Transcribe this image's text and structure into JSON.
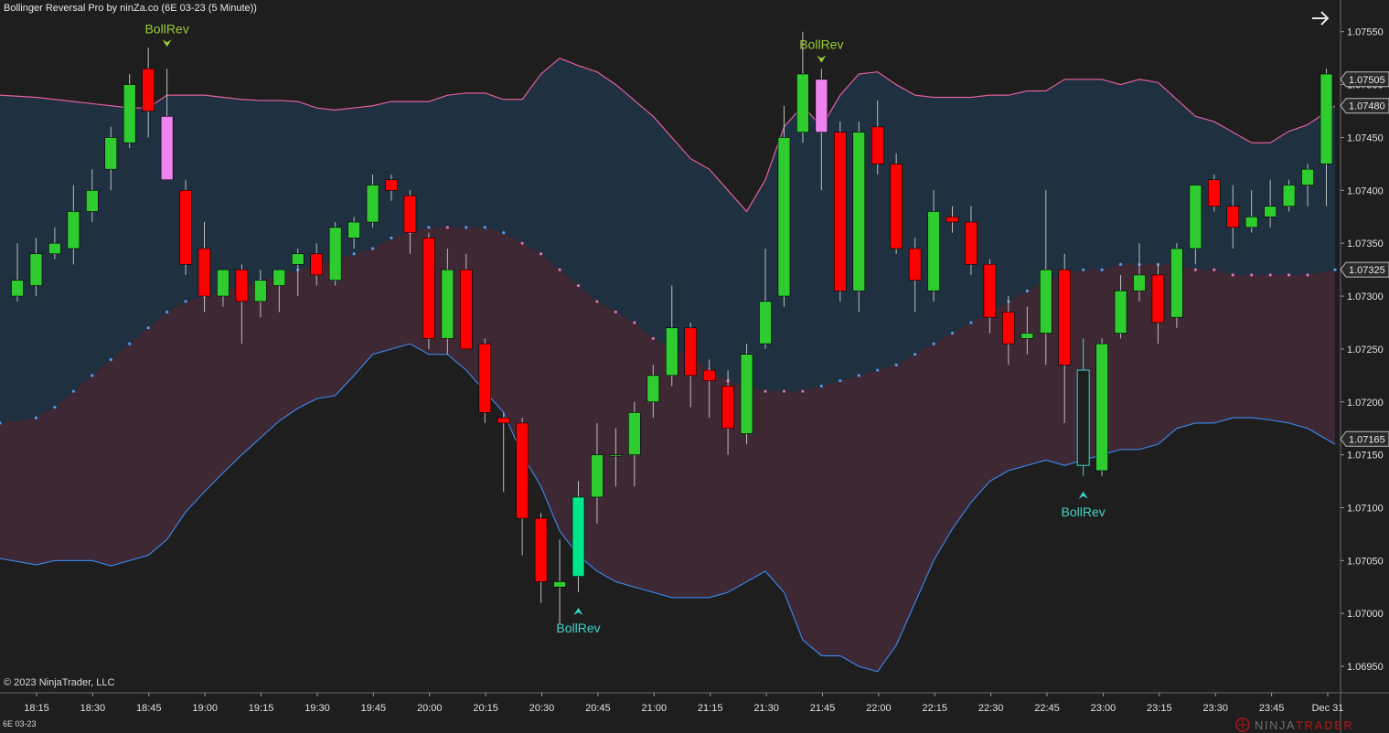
{
  "header": {
    "title": "Bollinger Reversal Pro by ninZa.co (6E 03-23 (5 Minute))"
  },
  "footer": {
    "copyright": "© 2023 NinjaTrader, LLC",
    "instrument": "6E 03-23",
    "brand_prefix": "NINJA",
    "brand_suffix": "TRADER"
  },
  "icons": {
    "expand": "arrow-right-icon",
    "logo": "ninjatrader-logo-icon"
  },
  "colors": {
    "background": "#1e1e1e",
    "up_candle": "#2ecc2e",
    "down_candle": "#ff0000",
    "upper_band": "#e0609a",
    "lower_band": "#3b82e0",
    "bull_fill": "#1f3040",
    "bear_fill": "#3d2834",
    "bull_signal": "#3fd3c8",
    "bear_signal": "#9acd32",
    "signal_bar_up": "#00e68a",
    "signal_bar_down": "#ee82ee"
  },
  "chart_data": {
    "type": "candlestick",
    "instrument": "6E 03-23",
    "timeframe": "5 Minute",
    "ylim": [
      1.06925,
      1.0758
    ],
    "y_ticks": [
      1.0755,
      1.075,
      1.0745,
      1.074,
      1.0735,
      1.073,
      1.0725,
      1.072,
      1.0715,
      1.071,
      1.0705,
      1.07,
      1.0695
    ],
    "x_ticks": [
      "18:15",
      "18:30",
      "18:45",
      "19:00",
      "19:15",
      "19:30",
      "19:45",
      "20:00",
      "20:15",
      "20:30",
      "20:45",
      "21:00",
      "21:15",
      "21:30",
      "21:45",
      "22:00",
      "22:15",
      "22:30",
      "22:45",
      "23:00",
      "23:15",
      "23:30",
      "23:45",
      "Dec 31"
    ],
    "price_markers": [
      {
        "value": "1.07505",
        "color": "#2a2a2a"
      },
      {
        "value": "1.07480",
        "color": "#2a2a2a"
      },
      {
        "value": "1.07325",
        "color": "#2a2a2a"
      },
      {
        "value": "1.07165",
        "color": "#2a2a2a"
      }
    ],
    "candles": [
      {
        "o": 1.073,
        "h": 1.0735,
        "l": 1.07295,
        "c": 1.07315
      },
      {
        "o": 1.0731,
        "h": 1.07355,
        "l": 1.073,
        "c": 1.0734
      },
      {
        "o": 1.0734,
        "h": 1.07365,
        "l": 1.07335,
        "c": 1.0735
      },
      {
        "o": 1.07345,
        "h": 1.07405,
        "l": 1.0733,
        "c": 1.0738
      },
      {
        "o": 1.0738,
        "h": 1.0742,
        "l": 1.0737,
        "c": 1.074
      },
      {
        "o": 1.0742,
        "h": 1.0746,
        "l": 1.074,
        "c": 1.0745
      },
      {
        "o": 1.07445,
        "h": 1.0751,
        "l": 1.0744,
        "c": 1.075
      },
      {
        "o": 1.07515,
        "h": 1.07535,
        "l": 1.0745,
        "c": 1.07475
      },
      {
        "o": 1.0747,
        "h": 1.07515,
        "l": 1.0741,
        "c": 1.0741,
        "signal_bar": "down"
      },
      {
        "o": 1.074,
        "h": 1.0741,
        "l": 1.0732,
        "c": 1.0733
      },
      {
        "o": 1.07345,
        "h": 1.0737,
        "l": 1.07285,
        "c": 1.073
      },
      {
        "o": 1.073,
        "h": 1.07325,
        "l": 1.0729,
        "c": 1.07325
      },
      {
        "o": 1.07325,
        "h": 1.0733,
        "l": 1.07255,
        "c": 1.07295
      },
      {
        "o": 1.07295,
        "h": 1.07325,
        "l": 1.0728,
        "c": 1.07315
      },
      {
        "o": 1.0731,
        "h": 1.07325,
        "l": 1.07285,
        "c": 1.07325
      },
      {
        "o": 1.0733,
        "h": 1.07345,
        "l": 1.073,
        "c": 1.0734
      },
      {
        "o": 1.0734,
        "h": 1.0735,
        "l": 1.0731,
        "c": 1.0732
      },
      {
        "o": 1.07315,
        "h": 1.0737,
        "l": 1.0731,
        "c": 1.07365
      },
      {
        "o": 1.07355,
        "h": 1.07375,
        "l": 1.07345,
        "c": 1.0737
      },
      {
        "o": 1.0737,
        "h": 1.07415,
        "l": 1.07365,
        "c": 1.07405
      },
      {
        "o": 1.0741,
        "h": 1.07415,
        "l": 1.0739,
        "c": 1.074
      },
      {
        "o": 1.07395,
        "h": 1.074,
        "l": 1.0734,
        "c": 1.0736
      },
      {
        "o": 1.07355,
        "h": 1.0736,
        "l": 1.0725,
        "c": 1.0726
      },
      {
        "o": 1.0726,
        "h": 1.07345,
        "l": 1.07245,
        "c": 1.07325
      },
      {
        "o": 1.07325,
        "h": 1.0734,
        "l": 1.0725,
        "c": 1.0725
      },
      {
        "o": 1.07255,
        "h": 1.0726,
        "l": 1.0718,
        "c": 1.0719
      },
      {
        "o": 1.07185,
        "h": 1.0719,
        "l": 1.07115,
        "c": 1.0718
      },
      {
        "o": 1.0718,
        "h": 1.07185,
        "l": 1.07055,
        "c": 1.0709
      },
      {
        "o": 1.0709,
        "h": 1.07095,
        "l": 1.0701,
        "c": 1.0703
      },
      {
        "o": 1.07025,
        "h": 1.0707,
        "l": 1.0699,
        "c": 1.0703
      },
      {
        "o": 1.07035,
        "h": 1.07125,
        "l": 1.0702,
        "c": 1.0711,
        "signal_bar": "up"
      },
      {
        "o": 1.0711,
        "h": 1.0718,
        "l": 1.07085,
        "c": 1.0715
      },
      {
        "o": 1.0715,
        "h": 1.07175,
        "l": 1.0712,
        "c": 1.0715
      },
      {
        "o": 1.0715,
        "h": 1.072,
        "l": 1.0712,
        "c": 1.0719
      },
      {
        "o": 1.072,
        "h": 1.07235,
        "l": 1.07185,
        "c": 1.07225
      },
      {
        "o": 1.07225,
        "h": 1.0731,
        "l": 1.07215,
        "c": 1.0727
      },
      {
        "o": 1.0727,
        "h": 1.07275,
        "l": 1.07195,
        "c": 1.07225
      },
      {
        "o": 1.0723,
        "h": 1.0724,
        "l": 1.07185,
        "c": 1.0722
      },
      {
        "o": 1.07215,
        "h": 1.0723,
        "l": 1.0715,
        "c": 1.07175
      },
      {
        "o": 1.0717,
        "h": 1.07255,
        "l": 1.0716,
        "c": 1.07245
      },
      {
        "o": 1.07255,
        "h": 1.07345,
        "l": 1.0725,
        "c": 1.07295
      },
      {
        "o": 1.073,
        "h": 1.0748,
        "l": 1.0729,
        "c": 1.0745
      },
      {
        "o": 1.07455,
        "h": 1.0755,
        "l": 1.07445,
        "c": 1.0751
      },
      {
        "o": 1.07505,
        "h": 1.07515,
        "l": 1.074,
        "c": 1.07455,
        "signal_bar": "down"
      },
      {
        "o": 1.07455,
        "h": 1.07465,
        "l": 1.07295,
        "c": 1.07305
      },
      {
        "o": 1.07305,
        "h": 1.07465,
        "l": 1.07285,
        "c": 1.07455
      },
      {
        "o": 1.0746,
        "h": 1.07485,
        "l": 1.07415,
        "c": 1.07425
      },
      {
        "o": 1.07425,
        "h": 1.07435,
        "l": 1.0734,
        "c": 1.07345
      },
      {
        "o": 1.07345,
        "h": 1.07355,
        "l": 1.07285,
        "c": 1.07315
      },
      {
        "o": 1.07305,
        "h": 1.074,
        "l": 1.07295,
        "c": 1.0738
      },
      {
        "o": 1.07375,
        "h": 1.07385,
        "l": 1.0736,
        "c": 1.0737
      },
      {
        "o": 1.0737,
        "h": 1.07385,
        "l": 1.0732,
        "c": 1.0733
      },
      {
        "o": 1.0733,
        "h": 1.07335,
        "l": 1.07265,
        "c": 1.0728
      },
      {
        "o": 1.07285,
        "h": 1.073,
        "l": 1.07235,
        "c": 1.07255
      },
      {
        "o": 1.0726,
        "h": 1.0729,
        "l": 1.07245,
        "c": 1.07265
      },
      {
        "o": 1.07265,
        "h": 1.074,
        "l": 1.07235,
        "c": 1.07325
      },
      {
        "o": 1.07325,
        "h": 1.0734,
        "l": 1.0718,
        "c": 1.07235
      },
      {
        "o": 1.0714,
        "h": 1.0726,
        "l": 1.0713,
        "c": 1.0723,
        "hollow": true
      },
      {
        "o": 1.07135,
        "h": 1.0726,
        "l": 1.0713,
        "c": 1.07255
      },
      {
        "o": 1.07265,
        "h": 1.0732,
        "l": 1.0726,
        "c": 1.07305
      },
      {
        "o": 1.07305,
        "h": 1.0735,
        "l": 1.07295,
        "c": 1.0732
      },
      {
        "o": 1.0732,
        "h": 1.0733,
        "l": 1.07255,
        "c": 1.07275
      },
      {
        "o": 1.0728,
        "h": 1.0735,
        "l": 1.0727,
        "c": 1.07345
      },
      {
        "o": 1.07345,
        "h": 1.07405,
        "l": 1.0733,
        "c": 1.07405
      },
      {
        "o": 1.0741,
        "h": 1.07415,
        "l": 1.0738,
        "c": 1.07385
      },
      {
        "o": 1.07385,
        "h": 1.07405,
        "l": 1.07345,
        "c": 1.07365
      },
      {
        "o": 1.07365,
        "h": 1.074,
        "l": 1.0736,
        "c": 1.07375
      },
      {
        "o": 1.07375,
        "h": 1.0741,
        "l": 1.07365,
        "c": 1.07385
      },
      {
        "o": 1.07385,
        "h": 1.0741,
        "l": 1.0738,
        "c": 1.07405
      },
      {
        "o": 1.07405,
        "h": 1.07425,
        "l": 1.07385,
        "c": 1.0742
      },
      {
        "o": 1.07425,
        "h": 1.07515,
        "l": 1.07385,
        "c": 1.0751
      }
    ],
    "upper_band": [
      1.0749,
      1.07488,
      1.07486,
      1.07484,
      1.07482,
      1.0748,
      1.07478,
      1.07478,
      1.0749,
      1.0749,
      1.0749,
      1.07488,
      1.07486,
      1.07485,
      1.07485,
      1.07484,
      1.07478,
      1.07476,
      1.07478,
      1.0748,
      1.07484,
      1.07484,
      1.07484,
      1.0749,
      1.07492,
      1.07492,
      1.07486,
      1.07486,
      1.0751,
      1.07525,
      1.07518,
      1.07512,
      1.075,
      1.07485,
      1.0747,
      1.0745,
      1.0743,
      1.0742,
      1.074,
      1.0738,
      1.0741,
      1.0746,
      1.0748,
      1.0746,
      1.0749,
      1.0751,
      1.07512,
      1.075,
      1.0749,
      1.07488,
      1.07488,
      1.07488,
      1.0749,
      1.0749,
      1.07494,
      1.07494,
      1.07505,
      1.07505,
      1.07505,
      1.075,
      1.07505,
      1.07502,
      1.07486,
      1.0747,
      1.07465,
      1.07455,
      1.07445,
      1.07445,
      1.07456,
      1.07462,
      1.0748
    ],
    "lower_band": [
      1.07052,
      1.07046,
      1.0705,
      1.0705,
      1.0705,
      1.07045,
      1.0705,
      1.07055,
      1.0707,
      1.07096,
      1.07115,
      1.07133,
      1.0715,
      1.07166,
      1.07182,
      1.07194,
      1.07203,
      1.07206,
      1.07225,
      1.07245,
      1.0725,
      1.07255,
      1.07245,
      1.07245,
      1.0723,
      1.0721,
      1.0719,
      1.0715,
      1.0712,
      1.07078,
      1.07055,
      1.0704,
      1.0703,
      1.07025,
      1.0702,
      1.07015,
      1.07015,
      1.07015,
      1.0702,
      1.0703,
      1.0704,
      1.0702,
      1.06975,
      1.0696,
      1.0696,
      1.0695,
      1.06945,
      1.0697,
      1.0701,
      1.0705,
      1.0708,
      1.07105,
      1.07125,
      1.07135,
      1.0714,
      1.07145,
      1.0714,
      1.07145,
      1.0715,
      1.07155,
      1.07155,
      1.0716,
      1.07175,
      1.0718,
      1.0718,
      1.07185,
      1.07185,
      1.07183,
      1.0718,
      1.07175,
      1.0716
    ],
    "trend_dots": [
      {
        "v": 1.0718,
        "t": "bull"
      },
      {
        "v": 1.07185,
        "t": "bull"
      },
      {
        "v": 1.07195,
        "t": "bull"
      },
      {
        "v": 1.0721,
        "t": "bull"
      },
      {
        "v": 1.07225,
        "t": "bull"
      },
      {
        "v": 1.0724,
        "t": "bull"
      },
      {
        "v": 1.07255,
        "t": "bull"
      },
      {
        "v": 1.0727,
        "t": "bull"
      },
      {
        "v": 1.07285,
        "t": "bull"
      },
      {
        "v": 1.07295,
        "t": "bull"
      },
      {
        "v": 1.073,
        "t": "bull"
      },
      {
        "v": 1.07305,
        "t": "bull"
      },
      {
        "v": 1.0731,
        "t": "bull"
      },
      {
        "v": 1.07315,
        "t": "bull"
      },
      {
        "v": 1.0732,
        "t": "bull"
      },
      {
        "v": 1.07325,
        "t": "bull"
      },
      {
        "v": 1.0733,
        "t": "bull"
      },
      {
        "v": 1.07335,
        "t": "bull"
      },
      {
        "v": 1.0734,
        "t": "bull"
      },
      {
        "v": 1.07345,
        "t": "bull"
      },
      {
        "v": 1.07355,
        "t": "bull"
      },
      {
        "v": 1.0736,
        "t": "bull"
      },
      {
        "v": 1.07365,
        "t": "bull"
      },
      {
        "v": 1.07365,
        "t": "bear"
      },
      {
        "v": 1.07365,
        "t": "bull"
      },
      {
        "v": 1.07365,
        "t": "bull"
      },
      {
        "v": 1.0736,
        "t": "bull"
      },
      {
        "v": 1.0735,
        "t": "bear"
      },
      {
        "v": 1.0734,
        "t": "bear"
      },
      {
        "v": 1.07325,
        "t": "bear"
      },
      {
        "v": 1.0731,
        "t": "bear"
      },
      {
        "v": 1.07295,
        "t": "bear"
      },
      {
        "v": 1.07285,
        "t": "bear"
      },
      {
        "v": 1.07275,
        "t": "bear"
      },
      {
        "v": 1.0726,
        "t": "bear"
      },
      {
        "v": 1.0725,
        "t": "bear"
      },
      {
        "v": 1.07245,
        "t": "bear"
      },
      {
        "v": 1.0723,
        "t": "bear"
      },
      {
        "v": 1.0722,
        "t": "bear"
      },
      {
        "v": 1.07215,
        "t": "bear"
      },
      {
        "v": 1.0721,
        "t": "bear"
      },
      {
        "v": 1.0721,
        "t": "bear"
      },
      {
        "v": 1.0721,
        "t": "bear"
      },
      {
        "v": 1.07215,
        "t": "bull"
      },
      {
        "v": 1.0722,
        "t": "bull"
      },
      {
        "v": 1.07225,
        "t": "bull"
      },
      {
        "v": 1.0723,
        "t": "bull"
      },
      {
        "v": 1.07235,
        "t": "bull"
      },
      {
        "v": 1.07245,
        "t": "bull"
      },
      {
        "v": 1.07255,
        "t": "bull"
      },
      {
        "v": 1.07265,
        "t": "bull"
      },
      {
        "v": 1.07275,
        "t": "bull"
      },
      {
        "v": 1.07285,
        "t": "bull"
      },
      {
        "v": 1.07295,
        "t": "bull"
      },
      {
        "v": 1.07305,
        "t": "bull"
      },
      {
        "v": 1.07315,
        "t": "bull"
      },
      {
        "v": 1.0732,
        "t": "bull"
      },
      {
        "v": 1.07325,
        "t": "bull"
      },
      {
        "v": 1.07325,
        "t": "bull"
      },
      {
        "v": 1.0733,
        "t": "bull"
      },
      {
        "v": 1.0733,
        "t": "bull"
      },
      {
        "v": 1.0733,
        "t": "bull"
      },
      {
        "v": 1.0733,
        "t": "bull"
      },
      {
        "v": 1.07325,
        "t": "bear"
      },
      {
        "v": 1.07325,
        "t": "bear"
      },
      {
        "v": 1.0732,
        "t": "bear"
      },
      {
        "v": 1.0732,
        "t": "bear"
      },
      {
        "v": 1.0732,
        "t": "bear"
      },
      {
        "v": 1.0732,
        "t": "bear"
      },
      {
        "v": 1.0732,
        "t": "bear"
      },
      {
        "v": 1.07325,
        "t": "bull"
      }
    ],
    "signals": [
      {
        "bar": 8,
        "type": "bear",
        "label": "BollRev",
        "price": 1.0754
      },
      {
        "bar": 30,
        "type": "bull",
        "label": "BollRev",
        "price": 1.0702
      },
      {
        "bar": 43,
        "type": "bear",
        "label": "BollRev",
        "price": 1.07525
      },
      {
        "bar": 57,
        "type": "bull",
        "label": "BollRev",
        "price": 1.0713
      }
    ]
  }
}
